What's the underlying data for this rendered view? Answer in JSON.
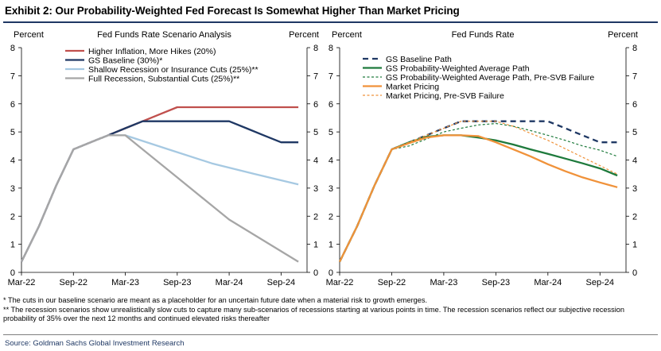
{
  "title": "Exhibit 2: Our Probability-Weighted Fed Forecast Is Somewhat Higher Than Market Pricing",
  "notes": [
    "* The cuts in our baseline scenario are meant as a placeholder for an uncertain future date when a material risk to growth emerges.",
    "** The recession scenarios show unrealistically slow cuts to capture many sub-scenarios of recessions starting at various points in time.  The recession scenarios reflect our subjective recession probability of 35% over the next 12 months and continued elevated risks thereafter"
  ],
  "source": "Source: Goldman Sachs Global Investment Research",
  "chart_data": [
    {
      "type": "line",
      "title": "Fed Funds Rate Scenario Analysis",
      "ylabel_left": "Percent",
      "ylabel_right": "Percent",
      "ylim": [
        0,
        8
      ],
      "yticks": [
        0,
        1,
        2,
        3,
        4,
        5,
        6,
        7,
        8
      ],
      "xlim": [
        0,
        33
      ],
      "xticks": [
        {
          "x": 0,
          "label": "Mar-22"
        },
        {
          "x": 6,
          "label": "Sep-22"
        },
        {
          "x": 12,
          "label": "Mar-23"
        },
        {
          "x": 18,
          "label": "Sep-23"
        },
        {
          "x": 24,
          "label": "Mar-24"
        },
        {
          "x": 30,
          "label": "Sep-24"
        }
      ],
      "legend_position": "top-left",
      "series": [
        {
          "name": "Higher Inflation, More Hikes (20%)",
          "color": "#c0504d",
          "dash": "solid",
          "x": [
            0,
            2,
            4,
            6,
            8,
            10,
            12,
            14,
            16,
            18,
            20,
            22,
            24,
            26,
            28,
            30,
            32
          ],
          "y": [
            0.38,
            1.63,
            3.08,
            4.38,
            4.63,
            4.88,
            5.13,
            5.38,
            5.63,
            5.88,
            5.88,
            5.88,
            5.88,
            5.88,
            5.88,
            5.88,
            5.88
          ]
        },
        {
          "name": "GS Baseline (30%)*",
          "color": "#1f3864",
          "dash": "solid",
          "x": [
            0,
            2,
            4,
            6,
            8,
            10,
            12,
            14,
            16,
            18,
            20,
            22,
            24,
            26,
            28,
            30,
            32
          ],
          "y": [
            0.38,
            1.63,
            3.08,
            4.38,
            4.63,
            4.88,
            5.13,
            5.38,
            5.38,
            5.38,
            5.38,
            5.38,
            5.38,
            5.13,
            4.88,
            4.63,
            4.63
          ]
        },
        {
          "name": "Shallow Recession or Insurance Cuts (25%)**",
          "color": "#a6c9e2",
          "dash": "solid",
          "x": [
            0,
            2,
            4,
            6,
            8,
            10,
            12,
            17,
            22,
            27,
            32
          ],
          "y": [
            0.38,
            1.63,
            3.08,
            4.38,
            4.63,
            4.88,
            4.88,
            4.38,
            3.88,
            3.5,
            3.13
          ]
        },
        {
          "name": "Full Recession, Substantial Cuts (25%)**",
          "color": "#a6a6a6",
          "dash": "solid",
          "x": [
            0,
            2,
            4,
            6,
            8,
            10,
            12,
            18,
            24,
            32
          ],
          "y": [
            0.38,
            1.63,
            3.08,
            4.38,
            4.63,
            4.88,
            4.88,
            3.38,
            1.88,
            0.38
          ]
        }
      ]
    },
    {
      "type": "line",
      "title": "Fed Funds Rate",
      "ylabel_left": "Percent",
      "ylabel_right": "Percent",
      "ylim": [
        0,
        8
      ],
      "yticks": [
        0,
        1,
        2,
        3,
        4,
        5,
        6,
        7,
        8
      ],
      "xlim": [
        0,
        33
      ],
      "xticks": [
        {
          "x": 0,
          "label": "Mar-22"
        },
        {
          "x": 6,
          "label": "Sep-22"
        },
        {
          "x": 12,
          "label": "Mar-23"
        },
        {
          "x": 18,
          "label": "Sep-23"
        },
        {
          "x": 24,
          "label": "Mar-24"
        },
        {
          "x": 30,
          "label": "Sep-24"
        }
      ],
      "legend_position": "top-left",
      "series": [
        {
          "name": "GS Baseline Path",
          "color": "#1f3864",
          "dash": "long",
          "x": [
            0,
            2,
            4,
            6,
            8,
            10,
            12,
            14,
            16,
            18,
            20,
            22,
            24,
            26,
            28,
            30,
            32
          ],
          "y": [
            0.38,
            1.63,
            3.08,
            4.38,
            4.63,
            4.88,
            5.13,
            5.38,
            5.38,
            5.38,
            5.38,
            5.38,
            5.38,
            5.13,
            4.88,
            4.63,
            4.63
          ]
        },
        {
          "name": "GS Probability-Weighted Average Path",
          "color": "#1e7a3c",
          "dash": "solid",
          "x": [
            0,
            2,
            4,
            6,
            8,
            10,
            12,
            14,
            16,
            18,
            20,
            22,
            24,
            26,
            28,
            30,
            32
          ],
          "y": [
            0.38,
            1.63,
            3.08,
            4.38,
            4.63,
            4.83,
            4.88,
            4.88,
            4.8,
            4.7,
            4.55,
            4.38,
            4.22,
            4.05,
            3.88,
            3.7,
            3.45
          ]
        },
        {
          "name": "GS Probability-Weighted Average Path, Pre-SVB Failure",
          "color": "#1e7a3c",
          "dash": "short",
          "x": [
            0,
            2,
            4,
            6,
            8,
            10,
            12,
            14,
            16,
            18,
            20,
            22,
            24,
            26,
            28,
            30,
            32
          ],
          "y": [
            0.38,
            1.63,
            3.08,
            4.38,
            4.5,
            4.75,
            5.0,
            5.13,
            5.25,
            5.3,
            5.2,
            5.05,
            4.88,
            4.7,
            4.5,
            4.35,
            4.13
          ]
        },
        {
          "name": "Market Pricing",
          "color": "#f0923a",
          "dash": "solid",
          "x": [
            0,
            2,
            4,
            6,
            8,
            10,
            12,
            14,
            16,
            18,
            20,
            22,
            24,
            26,
            28,
            30,
            32
          ],
          "y": [
            0.38,
            1.63,
            3.08,
            4.38,
            4.6,
            4.8,
            4.88,
            4.88,
            4.85,
            4.63,
            4.38,
            4.13,
            3.85,
            3.6,
            3.38,
            3.2,
            3.03
          ]
        },
        {
          "name": "Market Pricing, Pre-SVB Failure",
          "color": "#f0923a",
          "dash": "short",
          "x": [
            0,
            2,
            4,
            6,
            8,
            10,
            12,
            14,
            16,
            18,
            20,
            22,
            24,
            26,
            28,
            30,
            32
          ],
          "y": [
            0.38,
            1.63,
            3.08,
            4.38,
            4.63,
            4.88,
            5.13,
            5.38,
            5.38,
            5.38,
            5.2,
            4.95,
            4.7,
            4.4,
            4.1,
            3.8,
            3.5
          ]
        }
      ]
    }
  ]
}
